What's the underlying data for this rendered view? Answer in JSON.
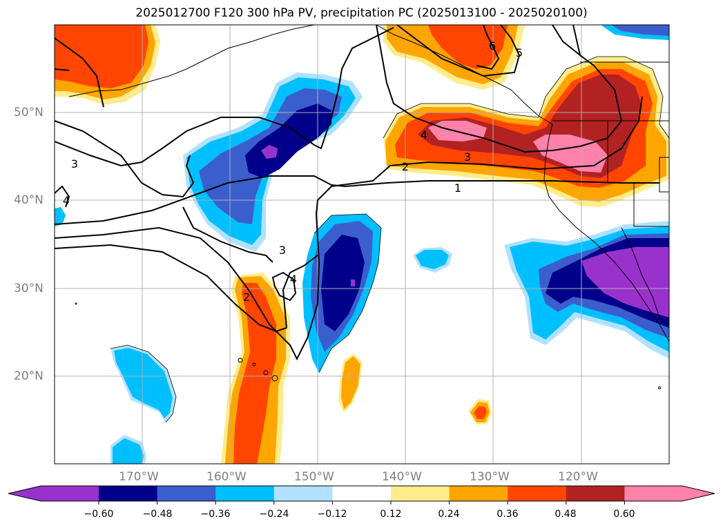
{
  "title": "2025012700 F120 300 hPa PV, precipitation PC (2025013100 - 2025020100)",
  "map": {
    "lon_range": [
      -180,
      -110
    ],
    "lat_range": [
      10,
      60
    ],
    "lat_ticks": [
      {
        "value": 50,
        "label": "50°N"
      },
      {
        "value": 40,
        "label": "40°N"
      },
      {
        "value": 30,
        "label": "30°N"
      },
      {
        "value": 20,
        "label": "20°N"
      }
    ],
    "lon_ticks": [
      {
        "value": -170,
        "label": "170°W"
      },
      {
        "value": -160,
        "label": "160°W"
      },
      {
        "value": -150,
        "label": "150°W"
      },
      {
        "value": -140,
        "label": "140°W"
      },
      {
        "value": -130,
        "label": "130°W"
      },
      {
        "value": -120,
        "label": "120°W"
      }
    ],
    "grid": true,
    "pv_contour_labels": [
      "1",
      "2",
      "3",
      "4",
      "5",
      "6",
      "2",
      "3",
      "4",
      "3",
      "4"
    ]
  },
  "colorbar": {
    "levels": [
      "−0.60",
      "−0.48",
      "−0.36",
      "−0.24",
      "−0.12",
      "0.12",
      "0.24",
      "0.36",
      "0.48",
      "0.60"
    ],
    "colors": [
      "#9932cc",
      "#00008b",
      "#3a5fcd",
      "#00bfff",
      "#b0e2ff",
      "#ffffff",
      "#ffec8b",
      "#ffa500",
      "#ff4500",
      "#b22222",
      "#ff82ab"
    ]
  }
}
